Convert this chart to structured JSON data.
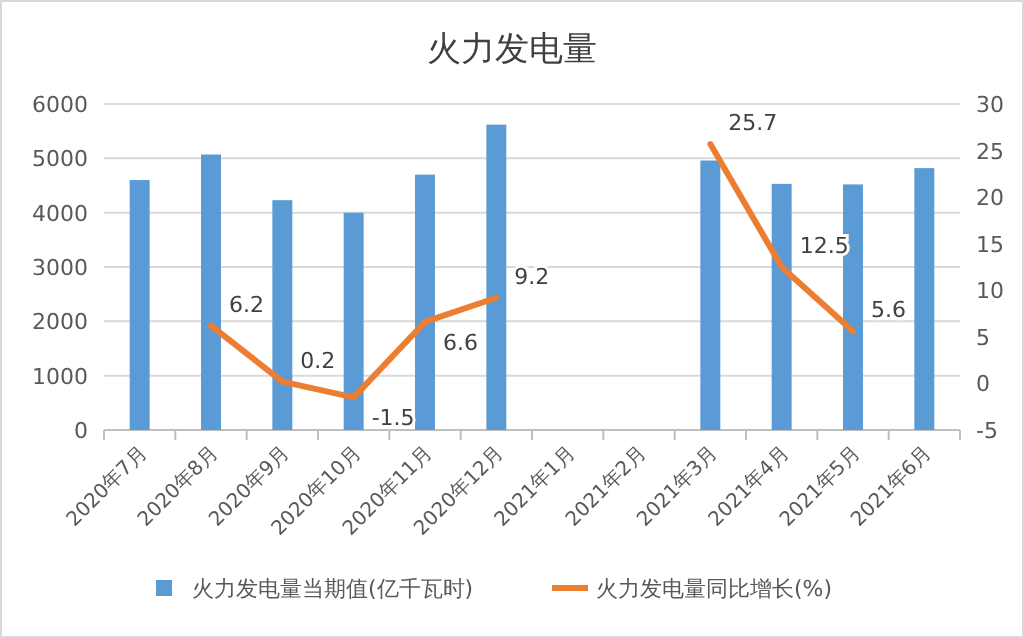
{
  "chart_data": {
    "type": "bar",
    "title": "火力发电量",
    "categories": [
      "2020年7月",
      "2020年8月",
      "2020年9月",
      "2020年10月",
      "2020年11月",
      "2020年12月",
      "2021年1月",
      "2021年2月",
      "2021年3月",
      "2021年4月",
      "2021年5月",
      "2021年6月"
    ],
    "series": [
      {
        "name": "火力发电量当期值(亿千瓦时)",
        "color": "#5b9bd5",
        "values": [
          4600,
          5070,
          4230,
          4000,
          4700,
          5620,
          null,
          null,
          4960,
          4530,
          4520,
          4820
        ]
      },
      {
        "name": "火力发电量同比增长(%)",
        "type": "line",
        "axis": "y2",
        "color": "#ed7d31",
        "values": [
          null,
          6.2,
          0.2,
          -1.5,
          6.6,
          9.2,
          null,
          null,
          25.7,
          12.5,
          5.6,
          null
        ],
        "value_labels": [
          null,
          "6.2",
          "0.2",
          "-1.5",
          "6.6",
          "9.2",
          null,
          null,
          "25.7",
          "12.5",
          "5.6",
          null
        ]
      }
    ],
    "ylim": [
      0,
      6000
    ],
    "yticks": [
      0,
      1000,
      2000,
      3000,
      4000,
      5000,
      6000
    ],
    "y2lim": [
      -5,
      30
    ],
    "y2ticks": [
      -5,
      0,
      5,
      10,
      15,
      20,
      25,
      30
    ],
    "grid": "y",
    "legend": "bottom"
  }
}
